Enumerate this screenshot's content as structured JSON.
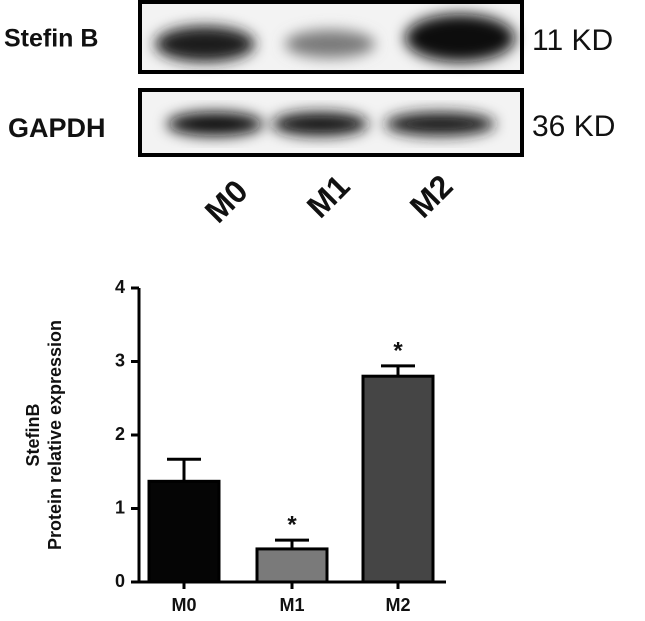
{
  "blot": {
    "rows": [
      {
        "label": "Stefin B",
        "size": "11 KD"
      },
      {
        "label": "GAPDH",
        "size": "36 KD"
      }
    ],
    "lanes": [
      "M0",
      "M1",
      "M2"
    ]
  },
  "chart_data": {
    "type": "bar",
    "y_label": [
      "StefinB",
      "Protein relative expression"
    ],
    "categories": [
      "M0",
      "M1",
      "M2"
    ],
    "values": [
      1.37,
      0.45,
      2.8
    ],
    "errors": [
      0.3,
      0.12,
      0.14
    ],
    "colors": [
      "#050505",
      "#7a7a7a",
      "#454545"
    ],
    "significance": [
      null,
      "*",
      "*"
    ],
    "ylim": [
      0,
      4
    ],
    "yticks": [
      0,
      1,
      2,
      3,
      4
    ]
  }
}
